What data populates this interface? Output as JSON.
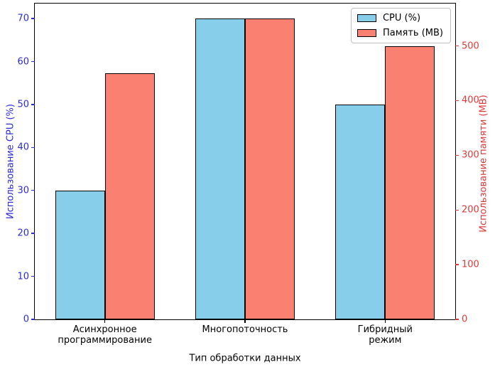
{
  "chart_data": {
    "type": "bar",
    "title": "",
    "xlabel": "Тип обработки данных",
    "categories": [
      "Асинхронное\nпрограммирование",
      "Многопоточность",
      "Гибридный режим"
    ],
    "series": [
      {
        "name": "CPU (%)",
        "axis": "left",
        "color": "#87CEEB",
        "edge_color": "#000000",
        "values": [
          30,
          70,
          50
        ]
      },
      {
        "name": "Память (MB)",
        "axis": "right",
        "color": "#FA8072",
        "edge_color": "#000000",
        "values": [
          450,
          550,
          500
        ]
      }
    ],
    "left_axis": {
      "label": "Использование CPU (%)",
      "color": "#2b2bd5",
      "ticks": [
        0,
        10,
        20,
        30,
        40,
        50,
        60,
        70
      ],
      "min": 0,
      "max": 73.5
    },
    "right_axis": {
      "label": "Использование памяти (MB)",
      "color": "#de3838",
      "ticks": [
        0,
        100,
        200,
        300,
        400,
        500
      ],
      "min": 0,
      "max": 577.5
    },
    "legend": {
      "position": "upper right"
    },
    "grid": false,
    "background": "#ffffff"
  }
}
